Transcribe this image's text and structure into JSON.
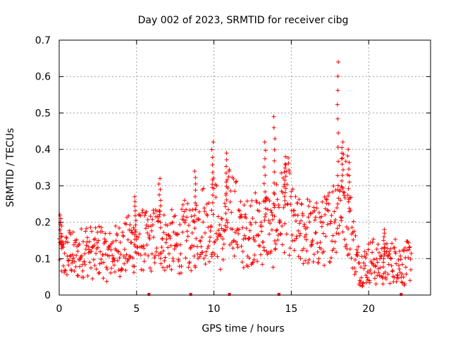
{
  "chart_data": {
    "type": "scatter",
    "title": "Day 002 of 2023, SRMTID for receiver cibg",
    "xlabel": "GPS time / hours",
    "ylabel": "SRMTID / TECUs",
    "xlim": [
      0,
      24
    ],
    "ylim": [
      0,
      0.7
    ],
    "xticks": [
      0,
      5,
      10,
      15,
      20
    ],
    "xtick_labels": [
      "0",
      "5",
      "10",
      "15",
      "20"
    ],
    "yticks": [
      0,
      0.1,
      0.2,
      0.3,
      0.4,
      0.5,
      0.6,
      0.7
    ],
    "ytick_labels": [
      "0",
      "0.1",
      "0.2",
      "0.3",
      "0.4",
      "0.5",
      "0.6",
      "0.7"
    ],
    "grid": true,
    "marker": "+",
    "color": "#ff0000",
    "series": [
      {
        "name": "SRMTID",
        "x": [
          0.0,
          0.25,
          0.5,
          0.75,
          1.0,
          1.25,
          1.5,
          1.75,
          2.0,
          2.25,
          2.5,
          2.75,
          3.0,
          3.25,
          3.5,
          3.75,
          4.0,
          4.25,
          4.5,
          4.75,
          5.0,
          5.25,
          5.5,
          5.75,
          6.0,
          6.25,
          6.5,
          6.75,
          7.0,
          7.25,
          7.5,
          7.75,
          8.0,
          8.25,
          8.5,
          8.75,
          9.0,
          9.25,
          9.5,
          9.75,
          10.0,
          10.25,
          10.5,
          10.75,
          11.0,
          11.25,
          11.5,
          11.75,
          12.0,
          12.25,
          12.5,
          12.75,
          13.0,
          13.25,
          13.5,
          13.75,
          14.0,
          14.25,
          14.5,
          14.75,
          15.0,
          15.25,
          15.5,
          15.75,
          16.0,
          16.25,
          16.5,
          16.75,
          17.0,
          17.25,
          17.5,
          17.75,
          18.0,
          18.25,
          18.5,
          18.75,
          19.0,
          19.25,
          19.5,
          19.75,
          20.0,
          20.25,
          20.5,
          20.75,
          21.0,
          21.25,
          21.5,
          21.75,
          22.0,
          22.25,
          22.5,
          22.75
        ],
        "y": [
          0.13,
          0.1,
          0.11,
          0.12,
          0.1,
          0.11,
          0.12,
          0.13,
          0.12,
          0.11,
          0.12,
          0.13,
          0.1,
          0.11,
          0.12,
          0.12,
          0.13,
          0.13,
          0.14,
          0.14,
          0.14,
          0.15,
          0.15,
          0.14,
          0.15,
          0.16,
          0.17,
          0.15,
          0.14,
          0.15,
          0.14,
          0.13,
          0.16,
          0.18,
          0.14,
          0.16,
          0.19,
          0.21,
          0.18,
          0.2,
          0.22,
          0.19,
          0.14,
          0.2,
          0.23,
          0.24,
          0.2,
          0.17,
          0.16,
          0.18,
          0.19,
          0.18,
          0.17,
          0.19,
          0.2,
          0.15,
          0.21,
          0.22,
          0.24,
          0.26,
          0.2,
          0.18,
          0.17,
          0.17,
          0.18,
          0.17,
          0.16,
          0.17,
          0.17,
          0.18,
          0.2,
          0.22,
          0.25,
          0.27,
          0.26,
          0.21,
          0.15,
          0.09,
          0.08,
          0.08,
          0.09,
          0.1,
          0.08,
          0.09,
          0.08,
          0.09,
          0.09,
          0.1,
          0.09,
          0.08,
          0.09,
          0.1
        ],
        "peaks": [
          {
            "x": 0.1,
            "y": 0.22
          },
          {
            "x": 4.9,
            "y": 0.27
          },
          {
            "x": 6.5,
            "y": 0.32
          },
          {
            "x": 8.8,
            "y": 0.34
          },
          {
            "x": 9.9,
            "y": 0.42
          },
          {
            "x": 10.8,
            "y": 0.39
          },
          {
            "x": 13.3,
            "y": 0.42
          },
          {
            "x": 13.9,
            "y": 0.49
          },
          {
            "x": 14.6,
            "y": 0.36
          },
          {
            "x": 18.0,
            "y": 0.64
          },
          {
            "x": 18.3,
            "y": 0.42
          },
          {
            "x": 18.7,
            "y": 0.4
          },
          {
            "x": 21.0,
            "y": 0.18
          }
        ],
        "zero_markers_x": [
          5.8,
          8.5,
          11.0,
          14.2,
          22.1
        ]
      }
    ]
  }
}
